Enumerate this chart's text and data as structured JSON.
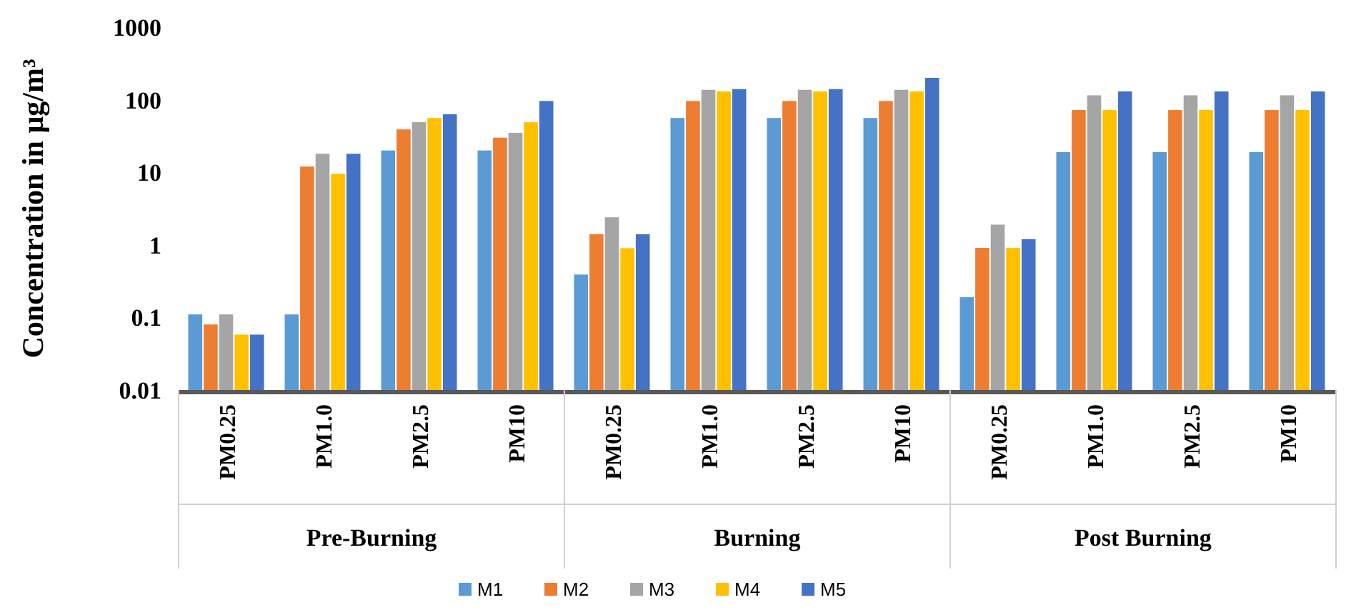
{
  "chart_data": {
    "type": "bar",
    "ylabel": "Concentration in μg/m³",
    "log": true,
    "ylim": [
      0.01,
      1000
    ],
    "yticks": [
      0.01,
      0.1,
      1,
      10,
      100,
      1000
    ],
    "grid": false,
    "legend": "bottom",
    "categories": [
      "PM0.25",
      "PM1.0",
      "PM2.5",
      "PM10",
      "PM0.25",
      "PM1.0",
      "PM2.5",
      "PM10",
      "PM0.25",
      "PM1.0",
      "PM2.5",
      "PM10"
    ],
    "annotations": [
      "Pre-Burning",
      "Burning",
      "Post Burning"
    ],
    "series": [
      {
        "name": "M1",
        "color": "#5b9bd5",
        "values": [
          0.11,
          0.11,
          20,
          20,
          0.39,
          56,
          56,
          56,
          0.19,
          19,
          19,
          19
        ]
      },
      {
        "name": "M2",
        "color": "#ed7d31",
        "values": [
          0.08,
          12,
          39,
          30,
          1.4,
          96,
          96,
          96,
          0.91,
          72,
          72,
          72
        ]
      },
      {
        "name": "M3",
        "color": "#a5a5a5",
        "values": [
          0.11,
          18,
          49,
          35,
          2.4,
          137,
          137,
          137,
          1.9,
          115,
          115,
          115
        ]
      },
      {
        "name": "M4",
        "color": "#ffc000",
        "values": [
          0.058,
          9.5,
          56,
          49,
          0.9,
          130,
          130,
          130,
          0.91,
          72,
          72,
          72
        ]
      },
      {
        "name": "M5",
        "color": "#4472c4",
        "values": [
          0.058,
          18,
          63,
          96,
          1.4,
          140,
          140,
          200,
          1.2,
          130,
          130,
          130
        ]
      }
    ]
  }
}
